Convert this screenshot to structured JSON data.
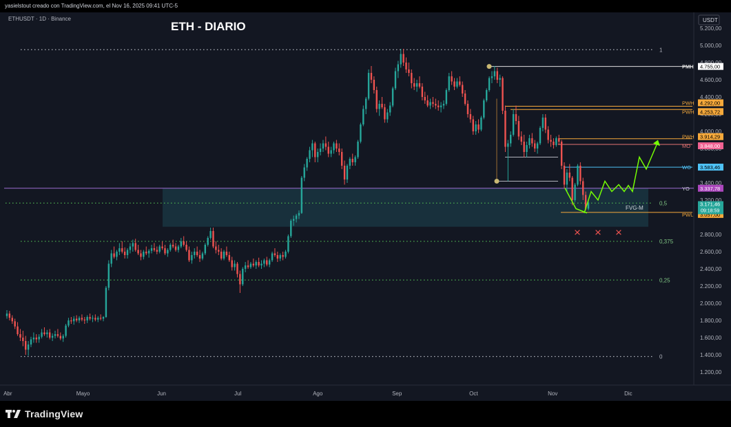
{
  "header": {
    "credit": "yasielstout creado con TradingView.com, el Nov 16, 2025 09:41 UTC-5"
  },
  "footer": {
    "brand": "TradingView"
  },
  "chart_data": {
    "type": "candlestick",
    "symbol": "ETHUSDT · 1D · Binance",
    "title": "ETH - DIARIO",
    "currency": "USDT",
    "x_labels": [
      "Abr",
      "Mayo",
      "Jun",
      "Jul",
      "Ago",
      "Sep",
      "Oct",
      "Nov",
      "Dic"
    ],
    "y_ticks": [
      "5.200,00",
      "5.000,00",
      "4.800,00",
      "4.600,00",
      "4.400,00",
      "4.200,00",
      "4.000,00",
      "3.800,00",
      "3.400,00",
      "3.200,00",
      "2.800,00",
      "2.600,00",
      "2.400,00",
      "2.200,00",
      "2.000,00",
      "1.800,00",
      "1.600,00",
      "1.400,00",
      "1.200,00"
    ],
    "ylim": [
      1100,
      5300
    ],
    "fib_levels": [
      {
        "label": "1",
        "price": 4950
      },
      {
        "label": "0,5",
        "price": 3165
      },
      {
        "label": "0,375",
        "price": 2720
      },
      {
        "label": "0,25",
        "price": 2270
      },
      {
        "label": "0",
        "price": 1380
      }
    ],
    "key_levels": [
      {
        "name": "PMH",
        "price": 4755,
        "tag": "4.755,00",
        "color": "#ffffff",
        "text_color": "#000000"
      },
      {
        "name": "PWH",
        "price": 4292,
        "tag": "4.292,00",
        "color": "#f6a93b",
        "text_color": "#000000"
      },
      {
        "name": "PWH",
        "price": 4253.72,
        "tag": "4.253,72",
        "color": "#f6a93b",
        "text_color": "#000000"
      },
      {
        "name": "PWH",
        "price": 3914.29,
        "tag": "3.914,29",
        "color": "#f6a93b",
        "text_color": "#000000"
      },
      {
        "name": "MO",
        "price": 3848,
        "tag": "3.848,00",
        "color": "#f06292",
        "text_color": "#ffffff"
      },
      {
        "name": "WO",
        "price": 3583.46,
        "tag": "3.583,46",
        "color": "#4fc3f7",
        "text_color": "#000000"
      },
      {
        "name": "YO",
        "price": 3337.78,
        "tag": "3.337,78",
        "color": "#ab47bc",
        "text_color": "#ffffff"
      },
      {
        "name": "PWL",
        "price": 3057,
        "tag": "3.057,00",
        "color": "#f6a93b",
        "text_color": "#000000"
      }
    ],
    "last_price": {
      "price": 3171.46,
      "tag": "3.171,46",
      "countdown": "09:18:59"
    },
    "fvg_label": "FVG-M",
    "markers": [
      "×",
      "×",
      "×"
    ],
    "ohlc": [
      [
        1850,
        1920,
        1820,
        1880
      ],
      [
        1880,
        1910,
        1800,
        1830
      ],
      [
        1830,
        1860,
        1760,
        1790
      ],
      [
        1790,
        1820,
        1700,
        1730
      ],
      [
        1730,
        1780,
        1620,
        1640
      ],
      [
        1640,
        1700,
        1560,
        1600
      ],
      [
        1600,
        1680,
        1500,
        1560
      ],
      [
        1560,
        1620,
        1400,
        1460
      ],
      [
        1460,
        1560,
        1390,
        1520
      ],
      [
        1520,
        1610,
        1490,
        1580
      ],
      [
        1580,
        1660,
        1540,
        1600
      ],
      [
        1600,
        1640,
        1540,
        1580
      ],
      [
        1580,
        1640,
        1540,
        1610
      ],
      [
        1610,
        1700,
        1590,
        1660
      ],
      [
        1660,
        1720,
        1620,
        1640
      ],
      [
        1640,
        1690,
        1600,
        1660
      ],
      [
        1660,
        1700,
        1580,
        1600
      ],
      [
        1600,
        1650,
        1560,
        1620
      ],
      [
        1620,
        1680,
        1590,
        1640
      ],
      [
        1640,
        1700,
        1600,
        1620
      ],
      [
        1620,
        1660,
        1570,
        1590
      ],
      [
        1590,
        1640,
        1550,
        1620
      ],
      [
        1620,
        1760,
        1600,
        1740
      ],
      [
        1740,
        1830,
        1720,
        1800
      ],
      [
        1800,
        1840,
        1760,
        1790
      ],
      [
        1790,
        1850,
        1750,
        1820
      ],
      [
        1820,
        1860,
        1780,
        1800
      ],
      [
        1800,
        1850,
        1770,
        1830
      ],
      [
        1830,
        1870,
        1790,
        1810
      ],
      [
        1810,
        1840,
        1760,
        1800
      ],
      [
        1800,
        1860,
        1770,
        1840
      ],
      [
        1840,
        1880,
        1800,
        1820
      ],
      [
        1820,
        1860,
        1780,
        1830
      ],
      [
        1830,
        1870,
        1790,
        1810
      ],
      [
        1810,
        1850,
        1780,
        1830
      ],
      [
        1830,
        1870,
        1800,
        1820
      ],
      [
        1820,
        1850,
        1790,
        1840
      ],
      [
        1840,
        2200,
        1830,
        2180
      ],
      [
        2180,
        2500,
        2150,
        2460
      ],
      [
        2460,
        2620,
        2420,
        2580
      ],
      [
        2580,
        2660,
        2520,
        2540
      ],
      [
        2540,
        2620,
        2500,
        2600
      ],
      [
        2600,
        2700,
        2560,
        2640
      ],
      [
        2640,
        2720,
        2580,
        2600
      ],
      [
        2600,
        2650,
        2520,
        2560
      ],
      [
        2560,
        2640,
        2520,
        2620
      ],
      [
        2620,
        2700,
        2580,
        2660
      ],
      [
        2660,
        2740,
        2600,
        2700
      ],
      [
        2700,
        2750,
        2600,
        2620
      ],
      [
        2620,
        2680,
        2560,
        2580
      ],
      [
        2580,
        2620,
        2500,
        2540
      ],
      [
        2540,
        2620,
        2510,
        2600
      ],
      [
        2600,
        2660,
        2560,
        2580
      ],
      [
        2580,
        2630,
        2530,
        2610
      ],
      [
        2610,
        2680,
        2580,
        2640
      ],
      [
        2640,
        2700,
        2600,
        2620
      ],
      [
        2620,
        2660,
        2570,
        2600
      ],
      [
        2600,
        2680,
        2580,
        2660
      ],
      [
        2660,
        2720,
        2620,
        2640
      ],
      [
        2640,
        2680,
        2560,
        2580
      ],
      [
        2580,
        2640,
        2540,
        2620
      ],
      [
        2620,
        2700,
        2600,
        2680
      ],
      [
        2680,
        2740,
        2640,
        2660
      ],
      [
        2660,
        2700,
        2600,
        2620
      ],
      [
        2620,
        2680,
        2590,
        2660
      ],
      [
        2660,
        2760,
        2640,
        2720
      ],
      [
        2720,
        2780,
        2660,
        2680
      ],
      [
        2680,
        2720,
        2600,
        2620
      ],
      [
        2620,
        2660,
        2480,
        2500
      ],
      [
        2500,
        2600,
        2460,
        2560
      ],
      [
        2560,
        2640,
        2520,
        2600
      ],
      [
        2600,
        2660,
        2540,
        2560
      ],
      [
        2560,
        2620,
        2480,
        2520
      ],
      [
        2520,
        2600,
        2500,
        2580
      ],
      [
        2580,
        2700,
        2560,
        2680
      ],
      [
        2680,
        2780,
        2660,
        2760
      ],
      [
        2760,
        2880,
        2740,
        2840
      ],
      [
        2840,
        2880,
        2640,
        2660
      ],
      [
        2660,
        2720,
        2580,
        2620
      ],
      [
        2620,
        2680,
        2560,
        2600
      ],
      [
        2600,
        2640,
        2500,
        2520
      ],
      [
        2520,
        2620,
        2500,
        2600
      ],
      [
        2600,
        2660,
        2540,
        2560
      ],
      [
        2560,
        2600,
        2480,
        2500
      ],
      [
        2500,
        2540,
        2380,
        2420
      ],
      [
        2420,
        2500,
        2380,
        2460
      ],
      [
        2460,
        2480,
        2300,
        2340
      ],
      [
        2340,
        2380,
        2120,
        2220
      ],
      [
        2220,
        2420,
        2200,
        2400
      ],
      [
        2400,
        2480,
        2360,
        2440
      ],
      [
        2440,
        2500,
        2400,
        2420
      ],
      [
        2420,
        2480,
        2400,
        2460
      ],
      [
        2460,
        2520,
        2420,
        2440
      ],
      [
        2440,
        2500,
        2400,
        2480
      ],
      [
        2480,
        2530,
        2420,
        2440
      ],
      [
        2440,
        2500,
        2400,
        2460
      ],
      [
        2460,
        2520,
        2420,
        2500
      ],
      [
        2500,
        2540,
        2430,
        2450
      ],
      [
        2450,
        2520,
        2420,
        2500
      ],
      [
        2500,
        2600,
        2480,
        2580
      ],
      [
        2580,
        2640,
        2540,
        2560
      ],
      [
        2560,
        2600,
        2480,
        2520
      ],
      [
        2520,
        2580,
        2490,
        2560
      ],
      [
        2560,
        2600,
        2500,
        2540
      ],
      [
        2540,
        2620,
        2520,
        2600
      ],
      [
        2600,
        2800,
        2580,
        2780
      ],
      [
        2780,
        2980,
        2760,
        2960
      ],
      [
        2960,
        3020,
        2900,
        2980
      ],
      [
        2980,
        3040,
        2940,
        3020
      ],
      [
        3020,
        3080,
        2980,
        3050
      ],
      [
        3050,
        3480,
        3040,
        3460
      ],
      [
        3460,
        3620,
        3420,
        3580
      ],
      [
        3580,
        3700,
        3540,
        3680
      ],
      [
        3680,
        3820,
        3640,
        3780
      ],
      [
        3780,
        3900,
        3700,
        3860
      ],
      [
        3860,
        3880,
        3640,
        3700
      ],
      [
        3700,
        3800,
        3640,
        3760
      ],
      [
        3760,
        3860,
        3720,
        3800
      ],
      [
        3800,
        3900,
        3760,
        3860
      ],
      [
        3860,
        3940,
        3780,
        3820
      ],
      [
        3820,
        3880,
        3700,
        3740
      ],
      [
        3740,
        3820,
        3700,
        3780
      ],
      [
        3780,
        3880,
        3740,
        3860
      ],
      [
        3860,
        3900,
        3760,
        3800
      ],
      [
        3800,
        3860,
        3720,
        3760
      ],
      [
        3760,
        3800,
        3560,
        3600
      ],
      [
        3600,
        3660,
        3380,
        3440
      ],
      [
        3440,
        3620,
        3400,
        3600
      ],
      [
        3600,
        3700,
        3560,
        3680
      ],
      [
        3680,
        3740,
        3600,
        3640
      ],
      [
        3640,
        3720,
        3600,
        3700
      ],
      [
        3700,
        3900,
        3680,
        3880
      ],
      [
        3880,
        4100,
        3860,
        4080
      ],
      [
        4080,
        4300,
        4060,
        4260
      ],
      [
        4260,
        4400,
        4200,
        4380
      ],
      [
        4380,
        4720,
        4360,
        4680
      ],
      [
        4680,
        4760,
        4560,
        4600
      ],
      [
        4600,
        4640,
        4440,
        4480
      ],
      [
        4480,
        4520,
        4220,
        4260
      ],
      [
        4260,
        4360,
        4180,
        4320
      ],
      [
        4320,
        4400,
        4260,
        4280
      ],
      [
        4280,
        4320,
        4100,
        4140
      ],
      [
        4140,
        4260,
        4100,
        4220
      ],
      [
        4220,
        4340,
        4180,
        4300
      ],
      [
        4300,
        4520,
        4280,
        4500
      ],
      [
        4500,
        4740,
        4480,
        4700
      ],
      [
        4700,
        4820,
        4620,
        4780
      ],
      [
        4780,
        4960,
        4740,
        4900
      ],
      [
        4900,
        4960,
        4760,
        4800
      ],
      [
        4800,
        4860,
        4680,
        4720
      ],
      [
        4720,
        4800,
        4640,
        4680
      ],
      [
        4680,
        4720,
        4500,
        4560
      ],
      [
        4560,
        4620,
        4480,
        4520
      ],
      [
        4520,
        4600,
        4460,
        4560
      ],
      [
        4560,
        4640,
        4500,
        4520
      ],
      [
        4520,
        4560,
        4360,
        4400
      ],
      [
        4400,
        4460,
        4320,
        4360
      ],
      [
        4360,
        4420,
        4280,
        4300
      ],
      [
        4300,
        4380,
        4260,
        4340
      ],
      [
        4340,
        4400,
        4280,
        4320
      ],
      [
        4320,
        4380,
        4260,
        4300
      ],
      [
        4300,
        4360,
        4240,
        4280
      ],
      [
        4280,
        4340,
        4220,
        4300
      ],
      [
        4300,
        4360,
        4260,
        4320
      ],
      [
        4320,
        4500,
        4300,
        4480
      ],
      [
        4480,
        4680,
        4460,
        4640
      ],
      [
        4640,
        4700,
        4540,
        4580
      ],
      [
        4580,
        4620,
        4480,
        4520
      ],
      [
        4520,
        4620,
        4500,
        4580
      ],
      [
        4580,
        4640,
        4520,
        4540
      ],
      [
        4540,
        4580,
        4400,
        4440
      ],
      [
        4440,
        4480,
        4300,
        4320
      ],
      [
        4320,
        4360,
        4160,
        4200
      ],
      [
        4200,
        4260,
        4100,
        4140
      ],
      [
        4140,
        4180,
        3960,
        4000
      ],
      [
        4000,
        4120,
        3960,
        4080
      ],
      [
        4080,
        4140,
        3980,
        4020
      ],
      [
        4020,
        4180,
        4000,
        4160
      ],
      [
        4160,
        4380,
        4140,
        4360
      ],
      [
        4360,
        4500,
        4340,
        4480
      ],
      [
        4480,
        4640,
        4460,
        4620
      ],
      [
        4620,
        4700,
        4560,
        4640
      ],
      [
        4640,
        4760,
        4600,
        4700
      ],
      [
        4700,
        4740,
        4560,
        4600
      ],
      [
        4600,
        4660,
        4520,
        4620
      ],
      [
        4620,
        4640,
        4200,
        4240
      ],
      [
        4240,
        4300,
        3760,
        3820
      ],
      [
        3820,
        3900,
        3420,
        3860
      ],
      [
        3860,
        4000,
        3820,
        3960
      ],
      [
        3960,
        4260,
        3940,
        4200
      ],
      [
        4200,
        4300,
        4080,
        4120
      ],
      [
        4120,
        4180,
        3900,
        3940
      ],
      [
        3940,
        4000,
        3840,
        3880
      ],
      [
        3880,
        3960,
        3700,
        3760
      ],
      [
        3760,
        3880,
        3700,
        3840
      ],
      [
        3840,
        3960,
        3800,
        3920
      ],
      [
        3920,
        3980,
        3820,
        3860
      ],
      [
        3860,
        3900,
        3760,
        3800
      ],
      [
        3800,
        3880,
        3740,
        3860
      ],
      [
        3860,
        4060,
        3840,
        4040
      ],
      [
        4040,
        4200,
        4000,
        4160
      ],
      [
        4160,
        4200,
        3980,
        4020
      ],
      [
        4020,
        4060,
        3860,
        3900
      ],
      [
        3900,
        3960,
        3820,
        3880
      ],
      [
        3880,
        3920,
        3800,
        3840
      ],
      [
        3840,
        3940,
        3820,
        3920
      ],
      [
        3920,
        3960,
        3840,
        3880
      ],
      [
        3880,
        3900,
        3560,
        3600
      ],
      [
        3600,
        3640,
        3340,
        3380
      ],
      [
        3380,
        3560,
        3300,
        3520
      ],
      [
        3520,
        3620,
        3420,
        3460
      ],
      [
        3460,
        3480,
        3140,
        3200
      ],
      [
        3200,
        3400,
        3180,
        3380
      ],
      [
        3380,
        3620,
        3360,
        3600
      ],
      [
        3600,
        3640,
        3380,
        3420
      ],
      [
        3420,
        3460,
        3200,
        3260
      ],
      [
        3260,
        3300,
        3080,
        3100
      ],
      [
        3100,
        3200,
        3080,
        3171
      ]
    ],
    "projection": [
      [
        3171,
        3420
      ],
      [
        3300,
        3440
      ],
      [
        3370,
        3480
      ],
      [
        3420,
        3520
      ],
      [
        3480,
        3520
      ],
      [
        3420,
        3560
      ],
      [
        3350,
        3600
      ],
      [
        3420,
        3640
      ],
      [
        3360,
        3680
      ],
      [
        3560,
        3720
      ],
      [
        3480,
        3760
      ],
      [
        3870,
        3800
      ]
    ]
  }
}
